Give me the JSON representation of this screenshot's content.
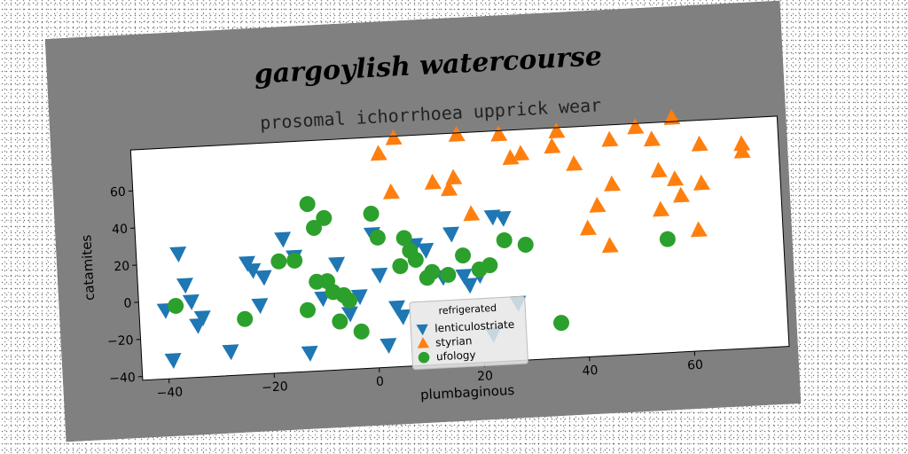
{
  "chart_data": {
    "type": "scatter",
    "title": "gargoylish watercourse",
    "subtitle": "prosomal ichorrhoea upprick wear",
    "xlabel": "plumbaginous",
    "ylabel": "catamites",
    "xlim": [
      -45,
      78
    ],
    "ylim": [
      -42,
      82
    ],
    "xticks": [
      -40,
      -20,
      0,
      20,
      40,
      60
    ],
    "yticks": [
      -40,
      -20,
      0,
      20,
      40,
      60
    ],
    "grid": false,
    "legend": {
      "title": "refrigerated",
      "placement": "lower-center"
    },
    "colors": {
      "figure_bg": "#808080",
      "axes_bg": "#ffffff"
    },
    "series": [
      {
        "name": "lenticulostriate",
        "marker": "triangle-down",
        "color": "#1f77b4",
        "points": [
          [
            -40,
            -5
          ],
          [
            -39,
            -32
          ],
          [
            -37,
            25
          ],
          [
            -36,
            8
          ],
          [
            -35,
            -1
          ],
          [
            -34,
            -14
          ],
          [
            -33,
            -10
          ],
          [
            -28,
            -29
          ],
          [
            -24,
            18
          ],
          [
            -23,
            14
          ],
          [
            -22,
            -5
          ],
          [
            -21,
            10
          ],
          [
            -17,
            30
          ],
          [
            -15,
            20
          ],
          [
            -13,
            -32
          ],
          [
            -10,
            -3
          ],
          [
            -7,
            15
          ],
          [
            -5,
            -12
          ],
          [
            -3,
            -3
          ],
          [
            0,
            30
          ],
          [
            1,
            8
          ],
          [
            2,
            -30
          ],
          [
            4,
            -10
          ],
          [
            5,
            -15
          ],
          [
            8,
            23
          ],
          [
            10,
            20
          ],
          [
            13,
            5
          ],
          [
            15,
            28
          ],
          [
            17,
            5
          ],
          [
            18,
            0
          ],
          [
            20,
            5
          ],
          [
            22,
            -27
          ],
          [
            23,
            36
          ],
          [
            25,
            35
          ],
          [
            27,
            -11
          ]
        ]
      },
      {
        "name": "styrian",
        "marker": "triangle-up",
        "color": "#ff7f0e",
        "points": [
          [
            2,
            73
          ],
          [
            4,
            52
          ],
          [
            5,
            81
          ],
          [
            12,
            56
          ],
          [
            15,
            52
          ],
          [
            16,
            58
          ],
          [
            17,
            81
          ],
          [
            19,
            38
          ],
          [
            25,
            80
          ],
          [
            27,
            67
          ],
          [
            29,
            69
          ],
          [
            35,
            72
          ],
          [
            36,
            80
          ],
          [
            39,
            62
          ],
          [
            41,
            27
          ],
          [
            43,
            39
          ],
          [
            45,
            17
          ],
          [
            46,
            50
          ],
          [
            46,
            74
          ],
          [
            51,
            80
          ],
          [
            54,
            73
          ],
          [
            55,
            35
          ],
          [
            55,
            56
          ],
          [
            58,
            84
          ],
          [
            58,
            51
          ],
          [
            59,
            42
          ],
          [
            62,
            23
          ],
          [
            63,
            48
          ],
          [
            63,
            69
          ],
          [
            71,
            64
          ],
          [
            71,
            68
          ]
        ]
      },
      {
        "name": "ufology",
        "marker": "circle",
        "color": "#2ca02c",
        "points": [
          [
            -38,
            -3
          ],
          [
            -25,
            -12
          ],
          [
            -18,
            18
          ],
          [
            -15,
            18
          ],
          [
            -13,
            -9
          ],
          [
            -12,
            48
          ],
          [
            -11,
            35
          ],
          [
            -11,
            6
          ],
          [
            -9,
            40
          ],
          [
            -9,
            6
          ],
          [
            -8,
            0
          ],
          [
            -7,
            -16
          ],
          [
            -6,
            -2
          ],
          [
            -5,
            -5
          ],
          [
            -3,
            -22
          ],
          [
            0,
            41
          ],
          [
            1,
            28
          ],
          [
            5,
            12
          ],
          [
            6,
            27
          ],
          [
            7,
            20
          ],
          [
            8,
            15
          ],
          [
            10,
            5
          ],
          [
            11,
            8
          ],
          [
            14,
            6
          ],
          [
            17,
            16
          ],
          [
            20,
            8
          ],
          [
            22,
            10
          ],
          [
            25,
            23
          ],
          [
            29,
            20
          ],
          [
            35,
            -23
          ],
          [
            56,
            19
          ]
        ]
      }
    ]
  }
}
